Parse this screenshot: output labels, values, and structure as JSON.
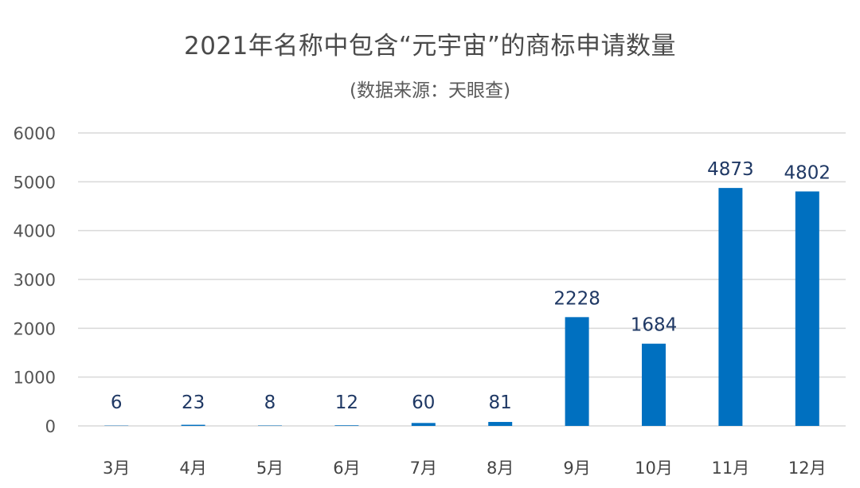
{
  "chart_data": {
    "type": "bar",
    "title": "2021年名称中包含“元宇宙”的商标申请数量",
    "subtitle": "(数据来源：天眼查)",
    "xlabel": "",
    "ylabel": "",
    "categories": [
      "3月",
      "4月",
      "5月",
      "6月",
      "7月",
      "8月",
      "9月",
      "10月",
      "11月",
      "12月"
    ],
    "values": [
      6,
      23,
      8,
      12,
      60,
      81,
      2228,
      1684,
      4873,
      4802
    ],
    "ylim": [
      0,
      6000
    ],
    "yticks": [
      0,
      1000,
      2000,
      3000,
      4000,
      5000,
      6000
    ],
    "grid": true,
    "legend": "none",
    "bar_color": "#0070c0",
    "grid_color": "#d9d9d9",
    "label_color": "#1f3864"
  }
}
